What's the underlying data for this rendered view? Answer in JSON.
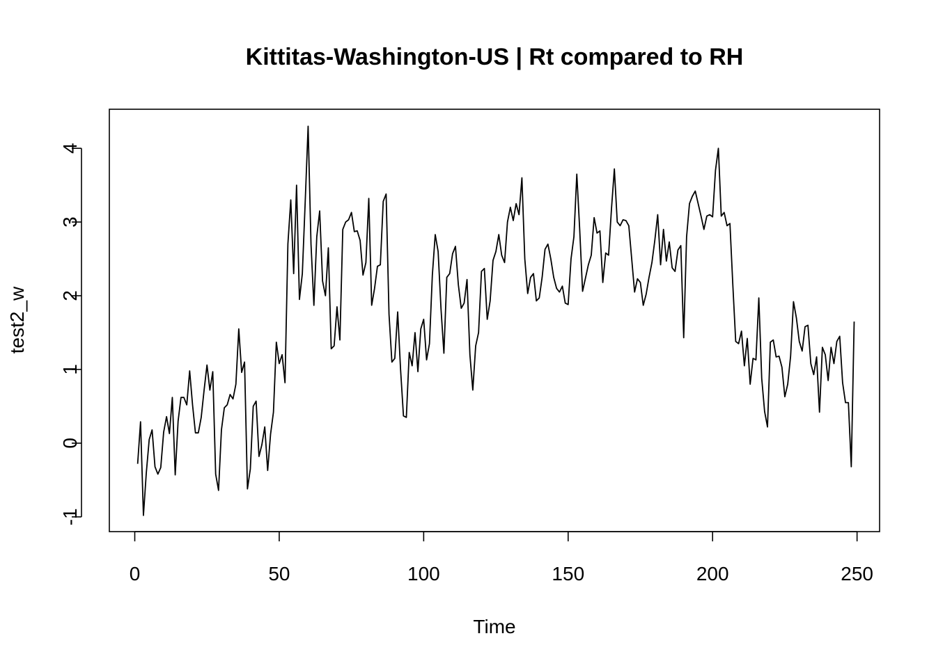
{
  "chart_data": {
    "type": "line",
    "title": "Kittitas-Washington-US | Rt compared to RH",
    "xlabel": "Time",
    "ylabel": "test2_w",
    "xlim": [
      -8.8,
      257.8
    ],
    "ylim": [
      -1.2,
      4.53
    ],
    "xticks": [
      0,
      50,
      100,
      150,
      200,
      250
    ],
    "yticks": [
      -1,
      0,
      1,
      2,
      3,
      4
    ],
    "xtick_labels": [
      "0",
      "50",
      "100",
      "150",
      "200",
      "250"
    ],
    "ytick_labels": [
      "-1",
      "0",
      "1",
      "2",
      "3",
      "4"
    ],
    "grid": false,
    "line_color": "#000000",
    "series": [
      {
        "x_start": 1,
        "values": [
          -0.28,
          0.29,
          -0.98,
          -0.4,
          0.05,
          0.18,
          -0.32,
          -0.42,
          -0.33,
          0.15,
          0.36,
          0.13,
          0.62,
          -0.43,
          0.3,
          0.62,
          0.62,
          0.52,
          0.98,
          0.52,
          0.14,
          0.14,
          0.35,
          0.72,
          1.06,
          0.72,
          0.97,
          -0.42,
          -0.64,
          0.18,
          0.48,
          0.52,
          0.66,
          0.6,
          0.8,
          1.55,
          0.96,
          1.1,
          -0.62,
          -0.35,
          0.5,
          0.57,
          -0.18,
          -0.02,
          0.22,
          -0.37,
          0.12,
          0.42,
          1.37,
          1.08,
          1.2,
          0.82,
          2.7,
          3.3,
          2.3,
          3.5,
          1.95,
          2.3,
          3.28,
          4.3,
          2.7,
          1.87,
          2.8,
          3.15,
          2.2,
          2.0,
          2.65,
          1.28,
          1.32,
          1.85,
          1.4,
          2.9,
          3.0,
          3.03,
          3.13,
          2.87,
          2.88,
          2.75,
          2.28,
          2.45,
          3.32,
          1.87,
          2.1,
          2.4,
          2.42,
          3.28,
          3.38,
          1.75,
          1.1,
          1.15,
          1.78,
          1.0,
          0.37,
          0.35,
          1.23,
          1.05,
          1.5,
          0.97,
          1.55,
          1.68,
          1.13,
          1.35,
          2.28,
          2.83,
          2.6,
          1.82,
          1.22,
          2.25,
          2.3,
          2.57,
          2.67,
          2.15,
          1.83,
          1.9,
          2.22,
          1.2,
          0.72,
          1.32,
          1.5,
          2.33,
          2.37,
          1.68,
          1.93,
          2.48,
          2.6,
          2.83,
          2.55,
          2.45,
          3.0,
          3.2,
          3.02,
          3.25,
          3.1,
          3.6,
          2.5,
          2.03,
          2.25,
          2.3,
          1.93,
          1.97,
          2.25,
          2.63,
          2.7,
          2.5,
          2.25,
          2.1,
          2.05,
          2.13,
          1.9,
          1.88,
          2.5,
          2.8,
          3.65,
          2.9,
          2.06,
          2.24,
          2.42,
          2.55,
          3.06,
          2.85,
          2.88,
          2.18,
          2.58,
          2.55,
          3.18,
          3.72,
          3.0,
          2.95,
          3.03,
          3.02,
          2.95,
          2.5,
          2.05,
          2.23,
          2.18,
          1.87,
          2.02,
          2.25,
          2.45,
          2.75,
          3.1,
          2.42,
          2.9,
          2.47,
          2.73,
          2.38,
          2.33,
          2.62,
          2.68,
          1.43,
          2.8,
          3.25,
          3.35,
          3.42,
          3.25,
          3.08,
          2.9,
          3.08,
          3.1,
          3.07,
          3.7,
          4.0,
          3.08,
          3.13,
          2.95,
          2.98,
          2.15,
          1.38,
          1.35,
          1.52,
          1.05,
          1.42,
          0.8,
          1.15,
          1.13,
          1.97,
          0.88,
          0.43,
          0.22,
          1.37,
          1.4,
          1.17,
          1.18,
          1.03,
          0.63,
          0.8,
          1.18,
          1.92,
          1.7,
          1.38,
          1.25,
          1.58,
          1.6,
          1.08,
          0.93,
          1.17,
          0.42,
          1.3,
          1.2,
          0.85,
          1.3,
          1.08,
          1.38,
          1.45,
          0.82,
          0.55,
          0.55,
          -0.32,
          1.65
        ]
      }
    ]
  }
}
